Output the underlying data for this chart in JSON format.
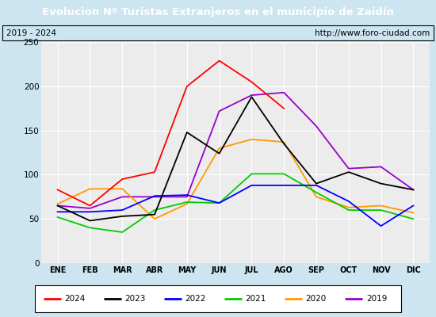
{
  "title": "Evolucion Nº Turistas Extranjeros en el municipio de Zaidín",
  "subtitle_left": "2019 - 2024",
  "subtitle_right": "http://www.foro-ciudad.com",
  "months": [
    "ENE",
    "FEB",
    "MAR",
    "ABR",
    "MAY",
    "JUN",
    "JUL",
    "AGO",
    "SEP",
    "OCT",
    "NOV",
    "DIC"
  ],
  "series": {
    "2024": [
      83,
      65,
      95,
      103,
      200,
      229,
      205,
      175,
      null,
      null,
      null,
      null
    ],
    "2023": [
      65,
      48,
      53,
      55,
      148,
      124,
      188,
      135,
      90,
      103,
      90,
      83
    ],
    "2022": [
      58,
      58,
      60,
      76,
      77,
      68,
      88,
      88,
      88,
      70,
      42,
      65
    ],
    "2021": [
      52,
      40,
      35,
      60,
      69,
      68,
      101,
      101,
      80,
      60,
      60,
      50
    ],
    "2020": [
      67,
      84,
      84,
      50,
      67,
      130,
      140,
      137,
      75,
      63,
      65,
      57
    ],
    "2019": [
      65,
      62,
      75,
      75,
      75,
      172,
      190,
      193,
      155,
      107,
      109,
      83
    ]
  },
  "colors": {
    "2024": "#ff0000",
    "2023": "#000000",
    "2022": "#0000ff",
    "2021": "#00cc00",
    "2020": "#ff9900",
    "2019": "#9900cc"
  },
  "ylim": [
    0,
    250
  ],
  "yticks": [
    0,
    50,
    100,
    150,
    200,
    250
  ],
  "bg_color": "#cce5f0",
  "plot_bg_color": "#ececec",
  "title_bg_color": "#4a8cc4",
  "title_color": "#ffffff",
  "grid_color": "#ffffff",
  "info_border_color": "#000000",
  "legend_border_color": "#000000"
}
